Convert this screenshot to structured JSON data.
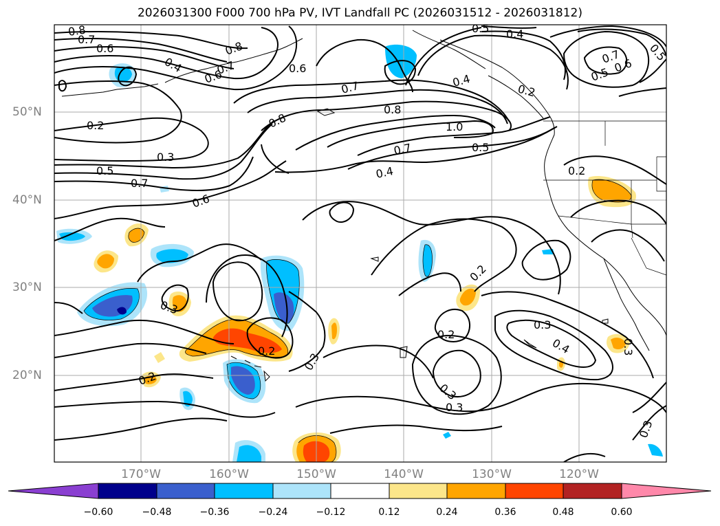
{
  "title": "2026031300 F000 700 hPa PV, IVT Landfall PC (2026031512 - 2026031812)",
  "lat_labels": [
    {
      "text": "50°N",
      "lat": 50
    },
    {
      "text": "40°N",
      "lat": 40
    },
    {
      "text": "30°N",
      "lat": 30
    },
    {
      "text": "20°N",
      "lat": 20
    }
  ],
  "lon_labels": [
    {
      "text": "170°W",
      "lon": -170
    },
    {
      "text": "160°W",
      "lon": -160
    },
    {
      "text": "150°W",
      "lon": -150
    },
    {
      "text": "140°W",
      "lon": -140
    },
    {
      "text": "130°W",
      "lon": -130
    },
    {
      "text": "120°W",
      "lon": -120
    }
  ],
  "colorbar": {
    "ticks": [
      "−0.60",
      "−0.48",
      "−0.36",
      "−0.24",
      "−0.12",
      "0.12",
      "0.24",
      "0.36",
      "0.48",
      "0.60"
    ],
    "colors": [
      "#8a3fd1",
      "#00008b",
      "#3a5fcd",
      "#00bfff",
      "#ade4fa",
      "#ffffff",
      "#fce68a",
      "#ffa500",
      "#ff4500",
      "#b22222",
      "#ff88aa"
    ]
  },
  "contour_labels": [
    "0.8",
    "0.7",
    "0.6",
    "0.4",
    "0.8",
    "0.7",
    "0.6",
    "0.6",
    "0.7",
    "0.8",
    "1.0",
    "0.5",
    "0.7",
    "0.4",
    "0.5",
    "0.4",
    "0.7",
    "0.6",
    "0.5",
    "0.5",
    "0.2",
    "0.4",
    "0.2",
    "0.2",
    "0.3",
    "0.5",
    "0.7",
    "0.6",
    "0.8",
    "0.3",
    "0.2",
    "0.2",
    "0.3",
    "0.2",
    "0.3",
    "0.3",
    "0.2",
    "0.3",
    "0.4",
    "0.3",
    "0.3"
  ]
}
